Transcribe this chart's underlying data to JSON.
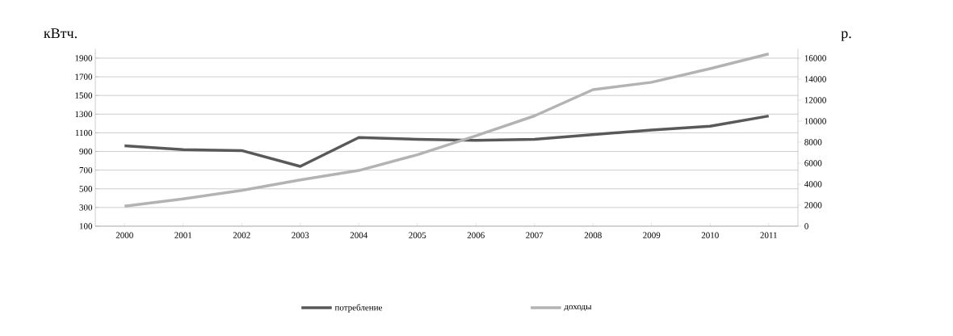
{
  "chart_data": {
    "type": "line",
    "ylabel": "кВтч.",
    "y2label": "р.",
    "categories": [
      "2000",
      "2001",
      "2002",
      "2003",
      "2004",
      "2005",
      "2006",
      "2007",
      "2008",
      "2009",
      "2010",
      "2011"
    ],
    "series": [
      {
        "name": "потребление",
        "color": "#595959",
        "values": [
          960,
          920,
          910,
          740,
          1050,
          1030,
          1020,
          1030,
          1080,
          1130,
          1170,
          1280
        ]
      },
      {
        "name": "доходы",
        "color": "#b3b3b3",
        "axis": "y2",
        "values": [
          1900,
          2600,
          3400,
          4400,
          5300,
          6800,
          8600,
          10500,
          13000,
          13700,
          15000,
          16400
        ]
      }
    ],
    "ylim": [
      100,
      2000
    ],
    "yticks": [
      100,
      300,
      500,
      700,
      900,
      1100,
      1300,
      1500,
      1700,
      1900
    ],
    "y2lim": [
      0,
      16890
    ],
    "y2ticks": [
      0,
      2000,
      4000,
      6000,
      8000,
      10000,
      12000,
      14000,
      16000
    ],
    "grid": "y",
    "legend": "bottom",
    "marker": "none",
    "line_style": "solid"
  }
}
